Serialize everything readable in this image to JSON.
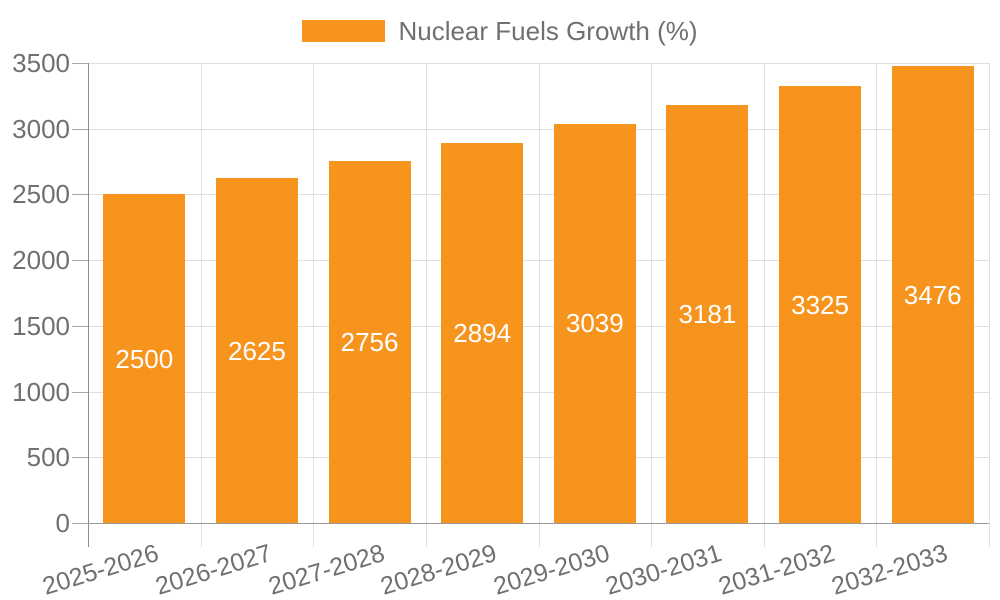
{
  "legend": {
    "label": "Nuclear Fuels Growth (%)"
  },
  "chart_data": {
    "type": "bar",
    "title": "",
    "categories": [
      "2025-2026",
      "2026-2027",
      "2027-2028",
      "2028-2029",
      "2029-2030",
      "2030-2031",
      "2031-2032",
      "2032-2033"
    ],
    "series": [
      {
        "name": "Nuclear Fuels Growth (%)",
        "values": [
          2500,
          2625,
          2756,
          2894,
          3039,
          3181,
          3325,
          3476
        ]
      }
    ],
    "bar_value_labels": [
      "2500",
      "2625",
      "2756",
      "2894",
      "3039",
      "3181",
      "3325",
      "3476"
    ],
    "xlabel": "",
    "ylabel": "",
    "ylim": [
      0,
      3500
    ],
    "yticks": [
      0,
      500,
      1000,
      1500,
      2000,
      2500,
      3000,
      3500
    ],
    "ytick_labels": [
      "0",
      "500",
      "1000",
      "1500",
      "2000",
      "2500",
      "3000",
      "3500"
    ],
    "grid": true,
    "legend_position": "top-center",
    "colors": {
      "bar": "#F7941E",
      "bar_value_text": "#FFFFFF",
      "axis_text": "#707070",
      "legend_text": "#707070",
      "gridline": "#E0E0E0",
      "axis_line": "#8C8C8C",
      "baseline": "#999999",
      "tick": "#A8A8A8",
      "background": "#FFFFFF"
    }
  }
}
